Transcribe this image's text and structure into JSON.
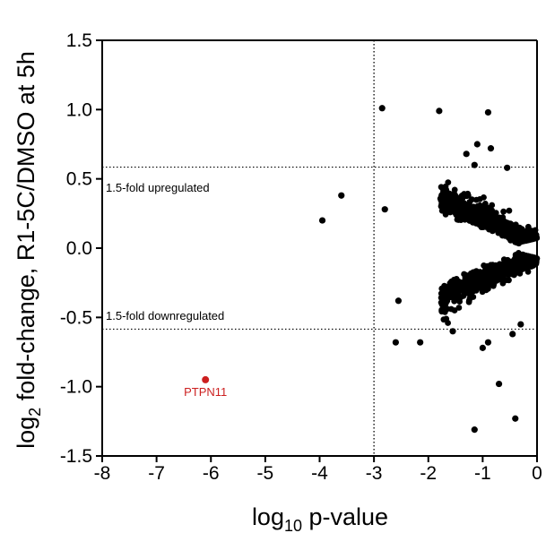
{
  "chart_data": {
    "type": "scatter",
    "title": "",
    "xlim": [
      -8,
      0
    ],
    "ylim": [
      -1.5,
      1.5
    ],
    "xticks": [
      -8,
      -7,
      -6,
      -5,
      -4,
      -3,
      -2,
      -1,
      0
    ],
    "yticks": [
      -1.5,
      -1.0,
      -0.5,
      0.0,
      0.5,
      1.0,
      1.5
    ],
    "xtick_labels": [
      "-8",
      "-7",
      "-6",
      "-5",
      "-4",
      "-3",
      "-2",
      "-1",
      "0"
    ],
    "ytick_labels": [
      "-1.5",
      "-1.0",
      "-0.5",
      "0.0",
      "0.5",
      "1.0",
      "1.5"
    ],
    "xlabel": {
      "base": "log",
      "sub": "10",
      "rest": " p-value"
    },
    "ylabel": {
      "base": "log",
      "sub": "2",
      "rest": " fold-change, R1-5C/DMSO at 5h"
    },
    "grid": false,
    "reference_lines": {
      "x": [
        -3
      ],
      "y": [
        0.585,
        -0.585
      ]
    },
    "annotations": {
      "upregulated": "1.5-fold upregulated",
      "downregulated": "1.5-fold downregulated"
    },
    "colors": {
      "points": "#000000",
      "highlight": "#cc1f1f"
    },
    "highlight": {
      "name": "PTPN11",
      "x": -6.1,
      "y": -0.95
    },
    "outliers": [
      {
        "x": -3.95,
        "y": 0.2
      },
      {
        "x": -3.6,
        "y": 0.38
      },
      {
        "x": -2.85,
        "y": 1.01
      },
      {
        "x": -2.8,
        "y": 0.28
      },
      {
        "x": -1.8,
        "y": 0.99
      },
      {
        "x": -0.9,
        "y": 0.98
      },
      {
        "x": -1.1,
        "y": 0.75
      },
      {
        "x": -0.85,
        "y": 0.72
      },
      {
        "x": -1.3,
        "y": 0.68
      },
      {
        "x": -1.15,
        "y": 0.6
      },
      {
        "x": -0.55,
        "y": 0.58
      },
      {
        "x": -2.55,
        "y": -0.38
      },
      {
        "x": -2.6,
        "y": -0.68
      },
      {
        "x": -2.15,
        "y": -0.68
      },
      {
        "x": -1.55,
        "y": -0.6
      },
      {
        "x": -1.0,
        "y": -0.72
      },
      {
        "x": -0.9,
        "y": -0.68
      },
      {
        "x": -0.7,
        "y": -0.98
      },
      {
        "x": -1.15,
        "y": -1.31
      },
      {
        "x": -0.4,
        "y": -1.23
      },
      {
        "x": -0.45,
        "y": -0.62
      },
      {
        "x": -0.3,
        "y": -0.55
      }
    ],
    "cloud_point_count": 1900
  }
}
